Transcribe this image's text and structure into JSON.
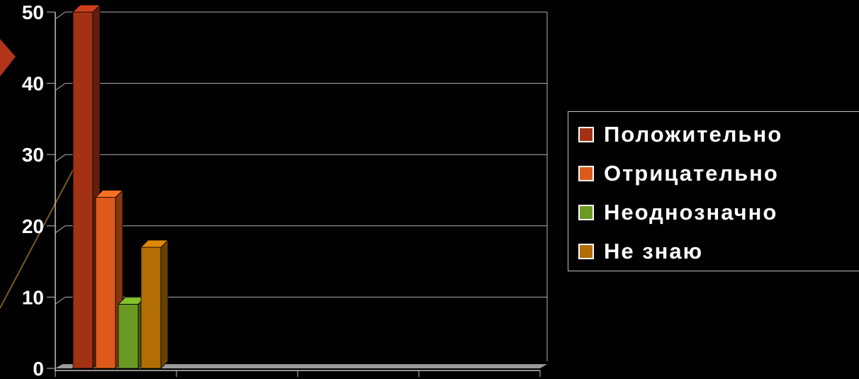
{
  "chart_data": {
    "type": "bar",
    "title": "",
    "xlabel": "",
    "ylabel": "",
    "ylim": [
      0,
      50
    ],
    "yticks": [
      0,
      10,
      20,
      30,
      40,
      50
    ],
    "grid": true,
    "three_d": true,
    "legend_position": "right",
    "categories": [
      ""
    ],
    "series": [
      {
        "name": "Положительно",
        "values": [
          50
        ],
        "color": "#a33215"
      },
      {
        "name": "Отрицательно",
        "values": [
          24
        ],
        "color": "#dd5a1b"
      },
      {
        "name": "Неоднозначно",
        "values": [
          9
        ],
        "color": "#6a9a24"
      },
      {
        "name": "Не знаю",
        "values": [
          17
        ],
        "color": "#b26d05"
      }
    ]
  },
  "colors": {
    "background": "#000000",
    "grid": "#b0b0b0",
    "axis": "#c0c0c0",
    "floor": "#9a9a9a",
    "decoration_arrow": "#b0331a"
  }
}
